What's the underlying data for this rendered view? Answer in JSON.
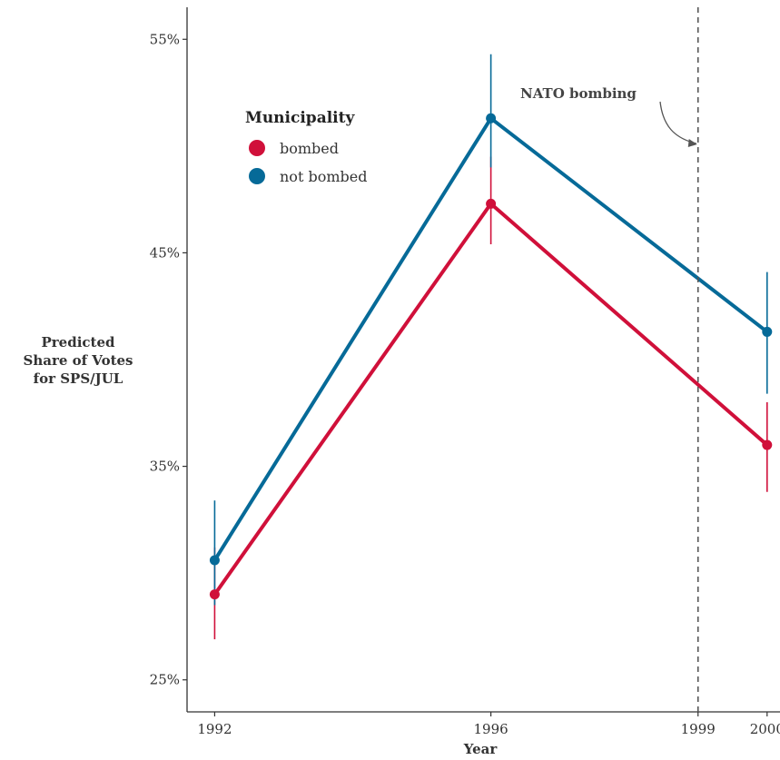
{
  "chart_data": {
    "type": "line",
    "x": [
      1992,
      1996,
      2000
    ],
    "x_ticks": [
      "1992",
      "1996",
      "1999",
      "2000"
    ],
    "xlabel": "Year",
    "ylabel_lines": [
      "Predicted",
      "Share of Votes",
      "for SPS/JUL"
    ],
    "y_ticks": [
      "25%",
      "35%",
      "45%",
      "55%"
    ],
    "y_tick_values": [
      25,
      35,
      45,
      55
    ],
    "ylim": [
      23.5,
      56.5
    ],
    "xlim": [
      1991.6,
      2000.2
    ],
    "grid": false,
    "legend": {
      "title": "Municipality",
      "placement": "top-left"
    },
    "series": [
      {
        "name": "bombed",
        "color": "#d0103a",
        "values": [
          29.0,
          47.3,
          36.0
        ],
        "ci_low": [
          26.9,
          45.4,
          33.8
        ],
        "ci_high": [
          31.2,
          49.5,
          38.0
        ]
      },
      {
        "name": "not bombed",
        "color": "#066a98",
        "values": [
          30.6,
          51.3,
          41.3
        ],
        "ci_low": [
          28.5,
          49.0,
          38.4
        ],
        "ci_high": [
          33.4,
          54.3,
          44.1
        ]
      }
    ],
    "annotation": {
      "text": "NATO bombing",
      "x": 1999
    }
  }
}
